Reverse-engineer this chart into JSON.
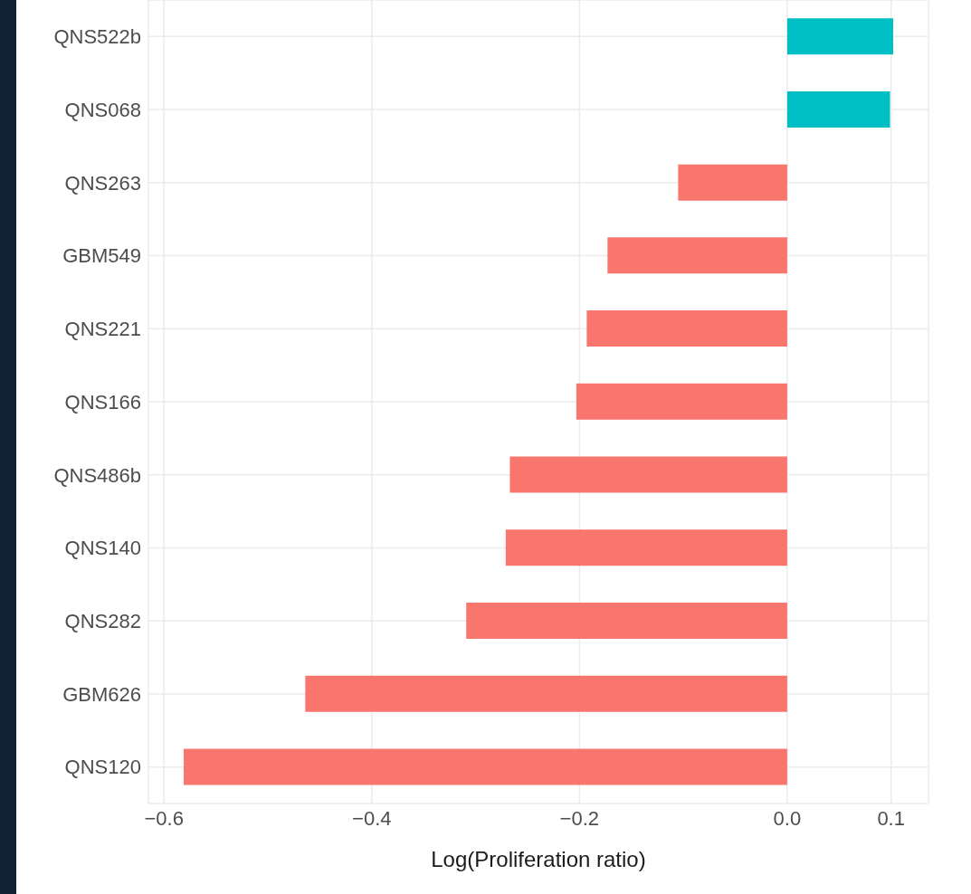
{
  "chart_data": {
    "type": "bar",
    "orientation": "horizontal",
    "xlabel": "Log(Proliferation ratio)",
    "categories": [
      "QNS522b",
      "QNS068",
      "QNS263",
      "GBM549",
      "QNS221",
      "QNS166",
      "QNS486b",
      "QNS140",
      "QNS282",
      "GBM626",
      "QNS120"
    ],
    "values": [
      0.102,
      0.099,
      -0.105,
      -0.173,
      -0.193,
      -0.203,
      -0.267,
      -0.271,
      -0.309,
      -0.464,
      -0.581
    ],
    "colors": [
      "#00bfc4",
      "#00bfc4",
      "#f8766d",
      "#f8766d",
      "#f8766d",
      "#f8766d",
      "#f8766d",
      "#f8766d",
      "#f8766d",
      "#f8766d",
      "#f8766d"
    ],
    "xlim": [
      -0.615,
      0.136
    ],
    "xticks": [
      {
        "value": -0.6,
        "label": "−0.6"
      },
      {
        "value": -0.4,
        "label": "−0.4"
      },
      {
        "value": -0.2,
        "label": "−0.2"
      },
      {
        "value": 0,
        "label": "0.0"
      },
      {
        "value": 0.1,
        "label": "0.1"
      }
    ],
    "grid": true
  }
}
